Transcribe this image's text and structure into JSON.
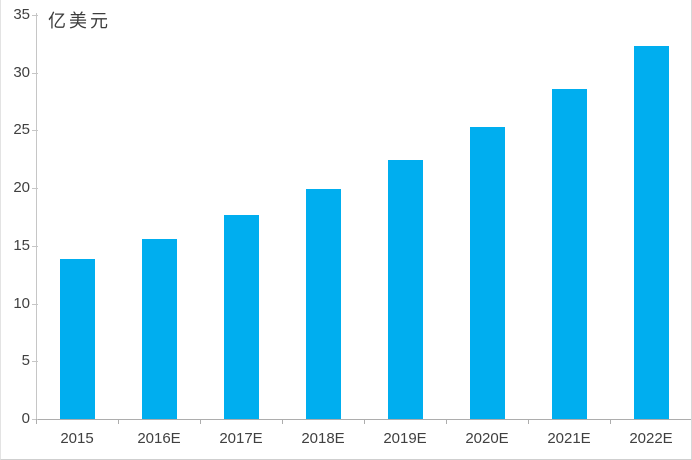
{
  "chart_data": {
    "type": "bar",
    "title": "",
    "unit_label": "亿美元",
    "ylabel": "亿美元",
    "xlabel": "",
    "categories": [
      "2015",
      "2016E",
      "2017E",
      "2018E",
      "2019E",
      "2020E",
      "2021E",
      "2022E"
    ],
    "values": [
      13.9,
      15.6,
      17.7,
      19.9,
      22.4,
      25.3,
      28.6,
      32.3
    ],
    "yticks": [
      0,
      5,
      10,
      15,
      20,
      25,
      30,
      35
    ],
    "ylim": [
      0,
      35
    ],
    "grid": false,
    "legend": false,
    "legend_position": "none",
    "bar_color": "#00AEEF",
    "axis_color": "#C6C6C6",
    "baseline_color": "#ADADAD",
    "text_color": "#404040"
  }
}
